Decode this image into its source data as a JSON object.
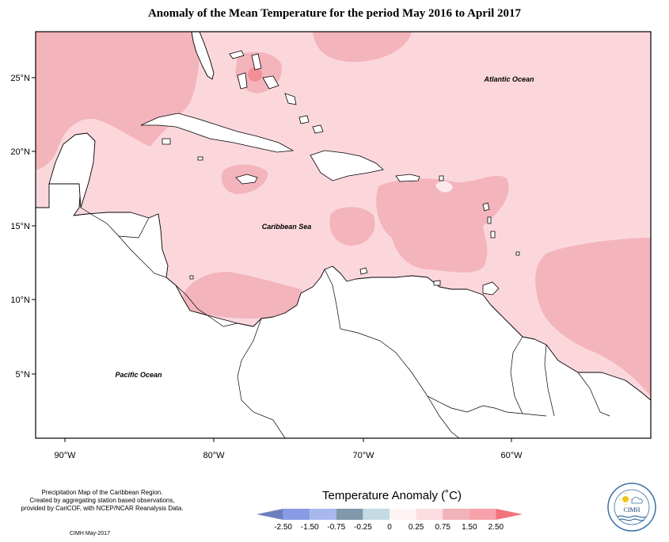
{
  "title": "Anomaly of the Mean Temperature for the period May 2016 to April 2017",
  "map": {
    "labels": {
      "atlantic": "Atlantic Ocean",
      "caribbean": "Caribbean Sea",
      "pacific": "Pacific Ocean"
    },
    "lat_ticks": [
      "25°N",
      "20°N",
      "15°N",
      "10°N",
      "5°N"
    ],
    "lon_ticks": [
      "90°W",
      "80°W",
      "70°W",
      "60°W"
    ],
    "colors": {
      "ocean_base": "#fbd7dc",
      "warm_patch": "#f3b4bb",
      "mid_patch": "#efbcc1",
      "hot_spot": "#f38f97",
      "neutral": "#fde9ec",
      "cool_spot": "#8ab2cc",
      "land": "#ffffff"
    }
  },
  "footer": {
    "lines": [
      "Precipitation Map of the Caribbean Region.",
      "Created by aggregating station based observations,",
      "provided by CariCOF, with NCEP/NCAR Reanalysis Data."
    ],
    "date": "CIMH May-2017"
  },
  "legend": {
    "title": "Temperature Anomaly (˚C)",
    "labels": [
      "-2.50",
      "-1.50",
      "-0.75",
      "-0.25",
      "0",
      "0.25",
      "0.75",
      "1.50",
      "2.50"
    ],
    "colors": [
      "#6e7fbe",
      "#8a9be6",
      "#a8b8ee",
      "#7f98ac",
      "#c4dbe4",
      "#fff4f5",
      "#fcdde1",
      "#f1b2b9",
      "#f6a2aa",
      "#f4747c"
    ]
  },
  "logo": {
    "text": "CIMH",
    "icon": "cimh-logo"
  }
}
